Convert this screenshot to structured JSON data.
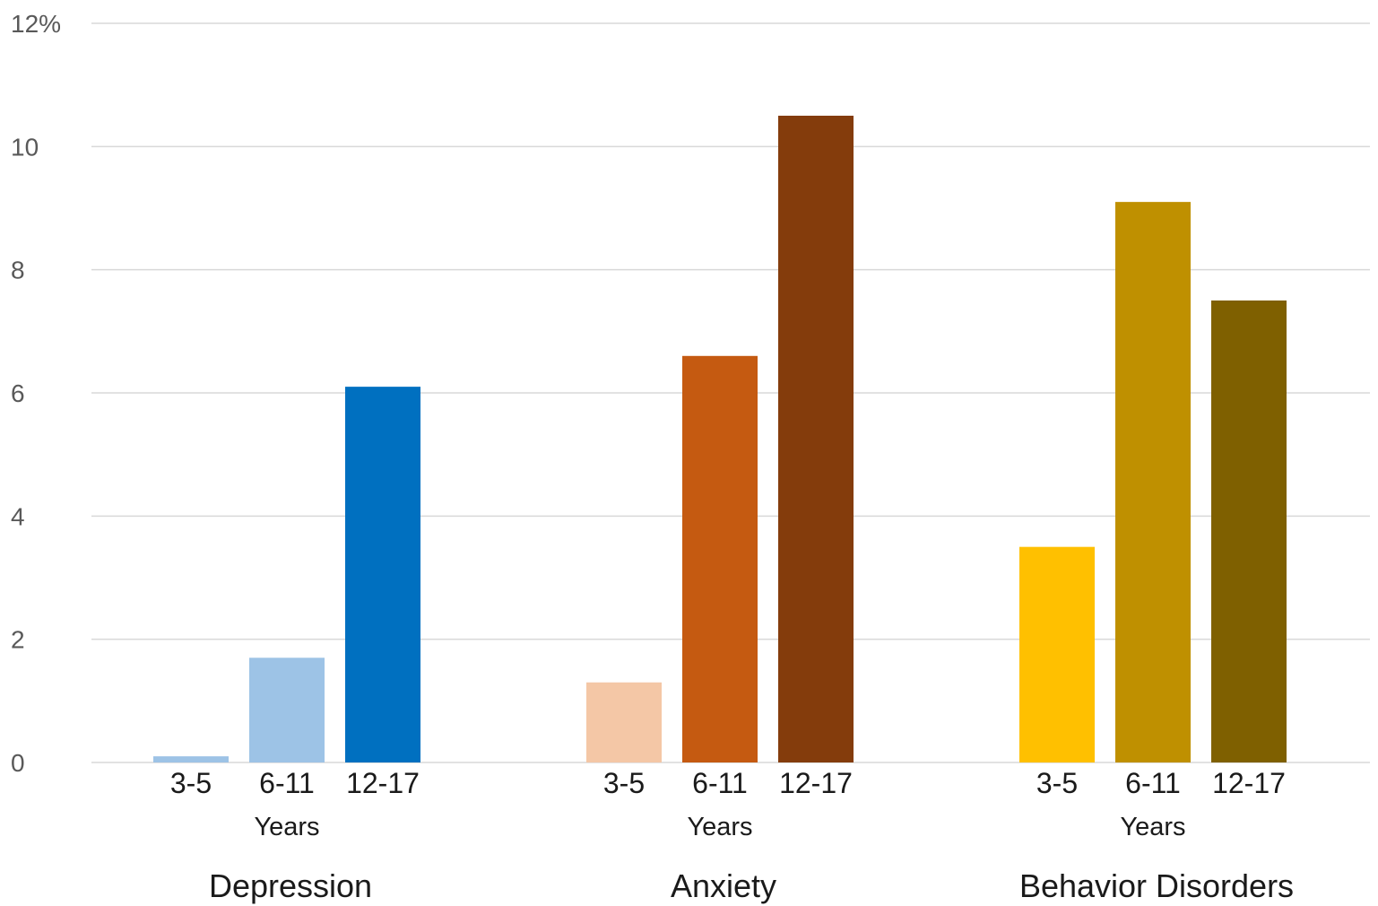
{
  "chart_data": {
    "type": "bar",
    "y_axis": {
      "ylim": [
        0,
        12
      ],
      "ticks": [
        {
          "value": 0,
          "label": "0"
        },
        {
          "value": 2,
          "label": "2"
        },
        {
          "value": 4,
          "label": "4"
        },
        {
          "value": 6,
          "label": "6"
        },
        {
          "value": 8,
          "label": "8"
        },
        {
          "value": 10,
          "label": "10"
        },
        {
          "value": 12,
          "label": "12%"
        }
      ]
    },
    "grid": true,
    "legend": "none",
    "groups": [
      {
        "name": "Depression",
        "unit_label": "Years",
        "bars": [
          {
            "category": "3-5",
            "value": 0.1,
            "color": "#9dc3e6"
          },
          {
            "category": "6-11",
            "value": 1.7,
            "color": "#9dc3e6"
          },
          {
            "category": "12-17",
            "value": 6.1,
            "color": "#0070c0"
          }
        ]
      },
      {
        "name": "Anxiety",
        "unit_label": "Years",
        "bars": [
          {
            "category": "3-5",
            "value": 1.3,
            "color": "#f4c7a6"
          },
          {
            "category": "6-11",
            "value": 6.6,
            "color": "#c55a11"
          },
          {
            "category": "12-17",
            "value": 10.5,
            "color": "#843c0c"
          }
        ]
      },
      {
        "name": "Behavior Disorders",
        "unit_label": "Years",
        "bars": [
          {
            "category": "3-5",
            "value": 3.5,
            "color": "#ffc000"
          },
          {
            "category": "6-11",
            "value": 9.1,
            "color": "#bf9000"
          },
          {
            "category": "12-17",
            "value": 7.5,
            "color": "#7f6000"
          }
        ]
      }
    ]
  }
}
